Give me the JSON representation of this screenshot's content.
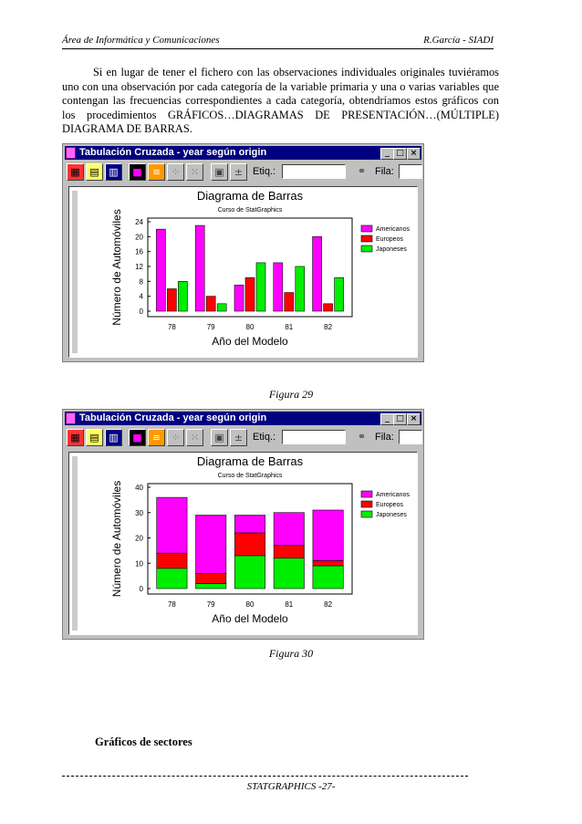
{
  "header": {
    "left": "Área de Informática y Comunicaciones",
    "right": "R.García -  SIADI"
  },
  "paragraph": "Si en lugar de tener el fichero con las observaciones individuales originales tuviéramos uno con una observación por cada categoría de la variable primaria y una o varias variables que contengan las frecuencias correspondientes a cada categoría, obtendríamos estos gráficos con los procedimientos GRÁFICOS…DIAGRAMAS DE PRESENTACIÓN…(MÚLTIPLE) DIAGRAMA DE BARRAS.",
  "window": {
    "title": "Tabulación Cruzada - year según origin",
    "etiq_label": "Etiq.:",
    "fila_label": "Fila:"
  },
  "colors": {
    "americanos": "#ff00ff",
    "europeos": "#ff0000",
    "japoneses": "#00ee00",
    "titlebar": "#000080"
  },
  "icons": [
    "multi-color-grid-icon",
    "grid-icon",
    "chart-icon",
    "window-icon",
    "settings-icon",
    "scatter-icon",
    "scatter-add-icon",
    "grid-exclude-icon",
    "plus-minus-icon",
    "binoculars-icon"
  ],
  "chart_data": [
    {
      "type": "bar",
      "title": "Diagrama de Barras",
      "subtitle": "Curso de StatGraphics",
      "xlabel": "Año del Modelo",
      "ylabel": "Número de Automóviles",
      "categories": [
        "78",
        "79",
        "80",
        "81",
        "82"
      ],
      "series": [
        {
          "name": "Americanos",
          "values": [
            22,
            23,
            7,
            13,
            20
          ]
        },
        {
          "name": "Europeos",
          "values": [
            6,
            4,
            9,
            5,
            2
          ]
        },
        {
          "name": "Japoneses",
          "values": [
            8,
            2,
            13,
            12,
            9
          ]
        }
      ],
      "ylim": [
        0,
        24
      ],
      "yticks": [
        "0",
        "4",
        "8",
        "12",
        "16",
        "20",
        "24"
      ],
      "legend": "right"
    },
    {
      "type": "stacked-bar",
      "title": "Diagrama de Barras",
      "subtitle": "Curso de StatGraphics",
      "xlabel": "Año del Modelo",
      "ylabel": "Número de Automóviles",
      "categories": [
        "78",
        "79",
        "80",
        "81",
        "82"
      ],
      "series": [
        {
          "name": "Japoneses",
          "values": [
            8,
            2,
            13,
            12,
            9
          ]
        },
        {
          "name": "Europeos",
          "values": [
            6,
            4,
            9,
            5,
            2
          ]
        },
        {
          "name": "Americanos",
          "values": [
            22,
            23,
            7,
            13,
            20
          ]
        }
      ],
      "ylim": [
        0,
        40
      ],
      "yticks": [
        "0",
        "10",
        "20",
        "30",
        "40"
      ],
      "legend": "right"
    }
  ],
  "captions": [
    "Figura 29",
    "Figura 30"
  ],
  "section_heading": "Gráficos de sectores",
  "footer": "STATGRAPHICS  -27-"
}
